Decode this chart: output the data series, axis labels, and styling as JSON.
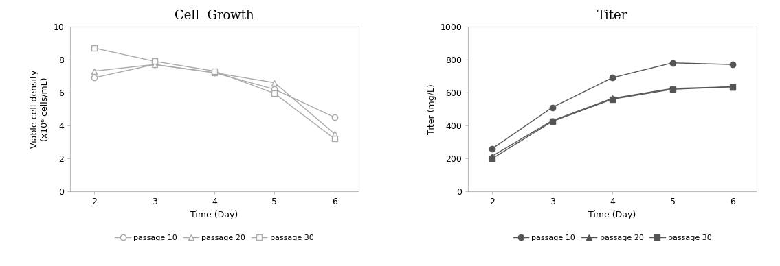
{
  "days": [
    2,
    3,
    4,
    5,
    6
  ],
  "cell_growth": {
    "title": "Cell  Growth",
    "ylabel": "Viable cell density\n(x10⁶ cells/mL)",
    "xlabel": "Time (Day)",
    "ylim": [
      0,
      10
    ],
    "yticks": [
      0,
      2,
      4,
      6,
      8,
      10
    ],
    "passage10": [
      6.9,
      7.7,
      7.2,
      6.2,
      4.5
    ],
    "passage20": [
      7.3,
      7.7,
      7.2,
      6.6,
      3.5
    ],
    "passage30": [
      8.7,
      7.9,
      7.3,
      5.95,
      3.2
    ]
  },
  "titer": {
    "title": "Titer",
    "ylabel": "Titer (mg/L)",
    "xlabel": "Time (Day)",
    "ylim": [
      0,
      1000
    ],
    "yticks": [
      0,
      200,
      400,
      600,
      800,
      1000
    ],
    "passage10": [
      260,
      510,
      690,
      780,
      770
    ],
    "passage20": [
      215,
      430,
      565,
      625,
      635
    ],
    "passage30": [
      200,
      425,
      560,
      620,
      635
    ]
  },
  "legend_labels": [
    "passage 10",
    "passage 20",
    "passage 30"
  ],
  "line_color_light": "#aaaaaa",
  "line_color_dark": "#555555",
  "spine_color": "#bbbbbb",
  "bg_color": "#ffffff",
  "title_fontsize": 13,
  "axis_fontsize": 9,
  "tick_fontsize": 9,
  "legend_fontsize": 8,
  "marker_size": 6,
  "line_width": 1.0
}
